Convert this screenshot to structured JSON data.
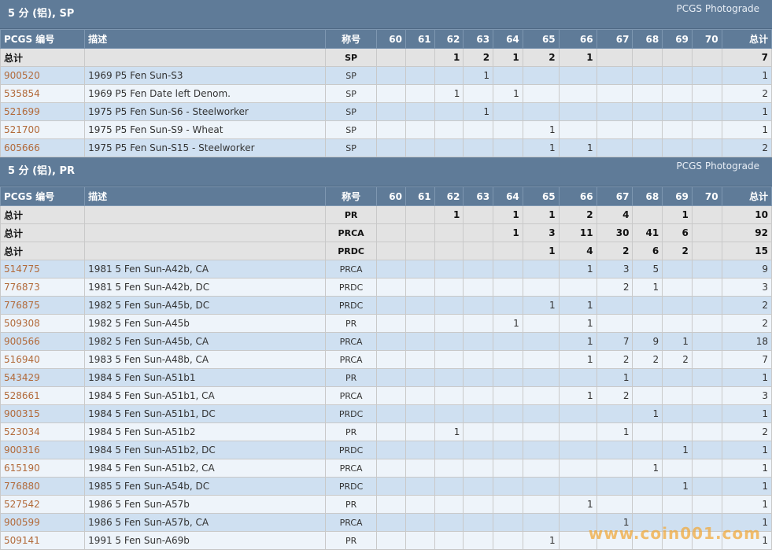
{
  "grade_headers": [
    "60",
    "61",
    "62",
    "63",
    "64",
    "65",
    "66",
    "67",
    "68",
    "69",
    "70"
  ],
  "col_labels": {
    "pcgs": "PCGS 编号",
    "desc": "描述",
    "designation": "称号",
    "total": "总计"
  },
  "sections": [
    {
      "title": "5 分 (铝), SP",
      "photograde": "PCGS Photograde",
      "rows": [
        {
          "kind": "total",
          "pcgs": "总计",
          "desc": "",
          "des": "SP",
          "grades": [
            "",
            "",
            "1",
            "2",
            "1",
            "2",
            "1",
            "",
            "",
            "",
            ""
          ],
          "total": "7"
        },
        {
          "kind": "item",
          "pcgs": "900520",
          "desc": "1969 P5 Fen Sun-S3",
          "des": "SP",
          "grades": [
            "",
            "",
            "",
            "1",
            "",
            "",
            "",
            "",
            "",
            "",
            ""
          ],
          "total": "1"
        },
        {
          "kind": "item",
          "pcgs": "535854",
          "desc": "1969 P5 Fen Date left Denom.",
          "des": "SP",
          "grades": [
            "",
            "",
            "1",
            "",
            "1",
            "",
            "",
            "",
            "",
            "",
            ""
          ],
          "total": "2"
        },
        {
          "kind": "item",
          "pcgs": "521699",
          "desc": "1975 P5 Fen Sun-S6 - Steelworker",
          "des": "SP",
          "grades": [
            "",
            "",
            "",
            "1",
            "",
            "",
            "",
            "",
            "",
            "",
            ""
          ],
          "total": "1"
        },
        {
          "kind": "item",
          "pcgs": "521700",
          "desc": "1975 P5 Fen Sun-S9 - Wheat",
          "des": "SP",
          "grades": [
            "",
            "",
            "",
            "",
            "",
            "1",
            "",
            "",
            "",
            "",
            ""
          ],
          "total": "1"
        },
        {
          "kind": "item",
          "pcgs": "605666",
          "desc": "1975 P5 Fen Sun-S15 - Steelworker",
          "des": "SP",
          "grades": [
            "",
            "",
            "",
            "",
            "",
            "1",
            "1",
            "",
            "",
            "",
            ""
          ],
          "total": "2"
        }
      ]
    },
    {
      "title": "5 分 (铝), PR",
      "photograde": "PCGS Photograde",
      "rows": [
        {
          "kind": "total",
          "pcgs": "总计",
          "desc": "",
          "des": "PR",
          "grades": [
            "",
            "",
            "1",
            "",
            "1",
            "1",
            "2",
            "4",
            "",
            "1",
            ""
          ],
          "total": "10"
        },
        {
          "kind": "total",
          "pcgs": "总计",
          "desc": "",
          "des": "PRCA",
          "grades": [
            "",
            "",
            "",
            "",
            "1",
            "3",
            "11",
            "30",
            "41",
            "6",
            ""
          ],
          "total": "92"
        },
        {
          "kind": "total",
          "pcgs": "总计",
          "desc": "",
          "des": "PRDC",
          "grades": [
            "",
            "",
            "",
            "",
            "",
            "1",
            "4",
            "2",
            "6",
            "2",
            ""
          ],
          "total": "15"
        },
        {
          "kind": "item",
          "pcgs": "514775",
          "desc": "1981 5 Fen Sun-A42b, CA",
          "des": "PRCA",
          "grades": [
            "",
            "",
            "",
            "",
            "",
            "",
            "1",
            "3",
            "5",
            "",
            ""
          ],
          "total": "9"
        },
        {
          "kind": "item",
          "pcgs": "776873",
          "desc": "1981 5 Fen Sun-A42b, DC",
          "des": "PRDC",
          "grades": [
            "",
            "",
            "",
            "",
            "",
            "",
            "",
            "2",
            "1",
            "",
            ""
          ],
          "total": "3"
        },
        {
          "kind": "item",
          "pcgs": "776875",
          "desc": "1982 5 Fen Sun-A45b, DC",
          "des": "PRDC",
          "grades": [
            "",
            "",
            "",
            "",
            "",
            "1",
            "1",
            "",
            "",
            "",
            ""
          ],
          "total": "2"
        },
        {
          "kind": "item",
          "pcgs": "509308",
          "desc": "1982 5 Fen Sun-A45b",
          "des": "PR",
          "grades": [
            "",
            "",
            "",
            "",
            "1",
            "",
            "1",
            "",
            "",
            "",
            ""
          ],
          "total": "2"
        },
        {
          "kind": "item",
          "pcgs": "900566",
          "desc": "1982 5 Fen Sun-A45b, CA",
          "des": "PRCA",
          "grades": [
            "",
            "",
            "",
            "",
            "",
            "",
            "1",
            "7",
            "9",
            "1",
            ""
          ],
          "total": "18"
        },
        {
          "kind": "item",
          "pcgs": "516940",
          "desc": "1983 5 Fen Sun-A48b, CA",
          "des": "PRCA",
          "grades": [
            "",
            "",
            "",
            "",
            "",
            "",
            "1",
            "2",
            "2",
            "2",
            ""
          ],
          "total": "7"
        },
        {
          "kind": "item",
          "pcgs": "543429",
          "desc": "1984 5 Fen Sun-A51b1",
          "des": "PR",
          "grades": [
            "",
            "",
            "",
            "",
            "",
            "",
            "",
            "1",
            "",
            "",
            ""
          ],
          "total": "1"
        },
        {
          "kind": "item",
          "pcgs": "528661",
          "desc": "1984 5 Fen Sun-A51b1, CA",
          "des": "PRCA",
          "grades": [
            "",
            "",
            "",
            "",
            "",
            "",
            "1",
            "2",
            "",
            "",
            ""
          ],
          "total": "3"
        },
        {
          "kind": "item",
          "pcgs": "900315",
          "desc": "1984 5 Fen Sun-A51b1, DC",
          "des": "PRDC",
          "grades": [
            "",
            "",
            "",
            "",
            "",
            "",
            "",
            "",
            "1",
            "",
            ""
          ],
          "total": "1"
        },
        {
          "kind": "item",
          "pcgs": "523034",
          "desc": "1984 5 Fen Sun-A51b2",
          "des": "PR",
          "grades": [
            "",
            "",
            "1",
            "",
            "",
            "",
            "",
            "1",
            "",
            "",
            ""
          ],
          "total": "2"
        },
        {
          "kind": "item",
          "pcgs": "900316",
          "desc": "1984 5 Fen Sun-A51b2, DC",
          "des": "PRDC",
          "grades": [
            "",
            "",
            "",
            "",
            "",
            "",
            "",
            "",
            "",
            "1",
            ""
          ],
          "total": "1"
        },
        {
          "kind": "item",
          "pcgs": "615190",
          "desc": "1984 5 Fen Sun-A51b2, CA",
          "des": "PRCA",
          "grades": [
            "",
            "",
            "",
            "",
            "",
            "",
            "",
            "",
            "1",
            "",
            ""
          ],
          "total": "1"
        },
        {
          "kind": "item",
          "pcgs": "776880",
          "desc": "1985 5 Fen Sun-A54b, DC",
          "des": "PRDC",
          "grades": [
            "",
            "",
            "",
            "",
            "",
            "",
            "",
            "",
            "",
            "1",
            ""
          ],
          "total": "1"
        },
        {
          "kind": "item",
          "pcgs": "527542",
          "desc": "1986 5 Fen Sun-A57b",
          "des": "PR",
          "grades": [
            "",
            "",
            "",
            "",
            "",
            "",
            "1",
            "",
            "",
            "",
            ""
          ],
          "total": "1"
        },
        {
          "kind": "item",
          "pcgs": "900599",
          "desc": "1986 5 Fen Sun-A57b, CA",
          "des": "PRCA",
          "grades": [
            "",
            "",
            "",
            "",
            "",
            "",
            "",
            "1",
            "",
            "",
            ""
          ],
          "total": "1"
        },
        {
          "kind": "item",
          "pcgs": "509141",
          "desc": "1991 5 Fen Sun-A69b",
          "des": "PR",
          "grades": [
            "",
            "",
            "",
            "",
            "",
            "1",
            "",
            "",
            "",
            "",
            ""
          ],
          "total": "1"
        }
      ]
    }
  ],
  "watermark": "www.coin001.com",
  "colors": {
    "header_bg": "#5f7b98",
    "total_row": "#e3e3e3",
    "row_blue": "#cfe0f1",
    "row_light": "#eef4fa",
    "link": "#b26a3a"
  }
}
